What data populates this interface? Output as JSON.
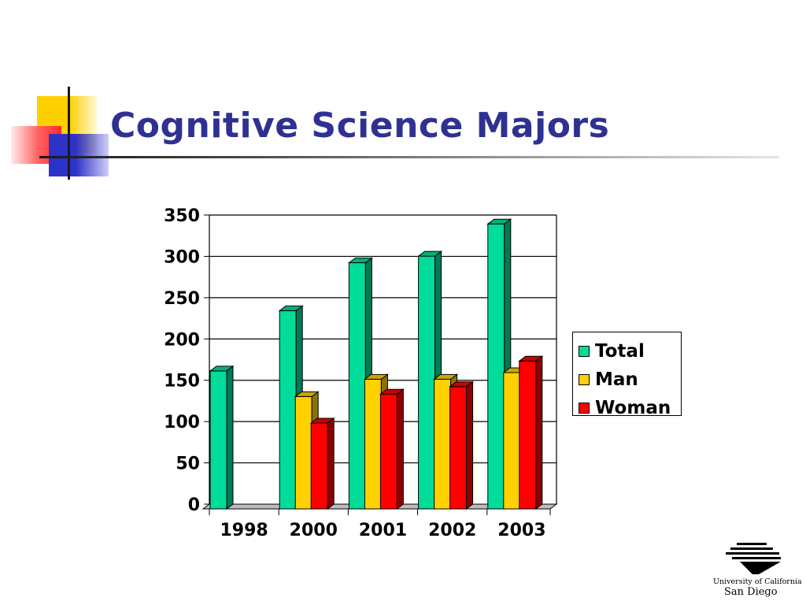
{
  "slide": {
    "title": "Cognitive Science Majors",
    "logo": {
      "line1": "University of California",
      "line2": "San Diego"
    }
  },
  "colors": {
    "title": "#2e3192",
    "total": "#00dc9a",
    "man": "#ffd100",
    "woman": "#ff0000"
  },
  "chart_data": {
    "type": "bar",
    "title": "",
    "xlabel": "",
    "ylabel": "",
    "categories": [
      "1998",
      "2000",
      "2001",
      "2002",
      "2003"
    ],
    "series": [
      {
        "name": "Total",
        "values": [
          167,
          240,
          298,
          306,
          345
        ]
      },
      {
        "name": "Man",
        "values": [
          null,
          136,
          157,
          157,
          165
        ]
      },
      {
        "name": "Woman",
        "values": [
          null,
          104,
          139,
          148,
          179
        ]
      }
    ],
    "ylim": [
      0,
      350
    ],
    "yticks": [
      0,
      50,
      100,
      150,
      200,
      250,
      300,
      350
    ],
    "grid": true,
    "legend": "right",
    "style": "3d-clustered-column"
  }
}
